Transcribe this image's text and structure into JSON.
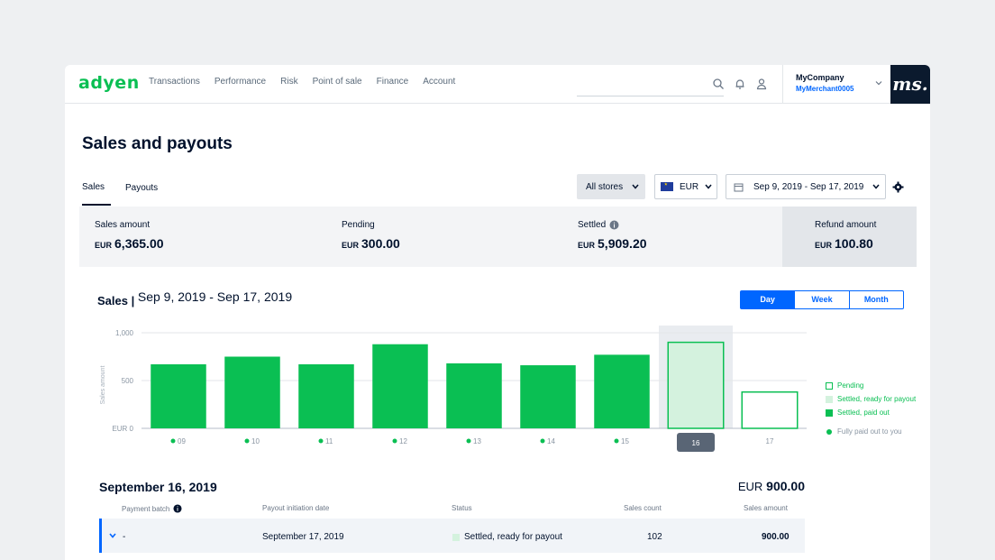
{
  "brand": {
    "logo_text": "adyen",
    "accent": "#0abf53",
    "link_blue": "#0066ff"
  },
  "nav": [
    "Transactions",
    "Performance",
    "Risk",
    "Point of sale",
    "Finance",
    "Account"
  ],
  "account": {
    "company": "MyCompany",
    "merchant": "MyMerchant0005",
    "avatar_text": "ms."
  },
  "page": {
    "title": "Sales and payouts"
  },
  "tabs": [
    "Sales",
    "Payouts"
  ],
  "filters": {
    "stores": "All stores",
    "currency": "EUR",
    "date_range": "Sep 9, 2019 - Sep 17, 2019"
  },
  "summary": [
    {
      "label": "Sales amount",
      "currency": "EUR",
      "value": "6,365.00"
    },
    {
      "label": "Pending",
      "currency": "EUR",
      "value": "300.00"
    },
    {
      "label": "Settled",
      "currency": "EUR",
      "value": "5,909.20"
    },
    {
      "label": "Refund amount",
      "currency": "EUR",
      "value": "100.80"
    }
  ],
  "chart": {
    "heading": "Sales |",
    "range": "Sep 9, 2019 - Sep 17, 2019",
    "periods": [
      "Day",
      "Week",
      "Month"
    ],
    "active_period": "Day",
    "legend": [
      "Pending",
      "Settled, ready for payout",
      "Settled, paid out",
      "Fully paid out to you"
    ]
  },
  "chart_data": {
    "type": "bar",
    "categories": [
      "09",
      "10",
      "11",
      "12",
      "13",
      "14",
      "15",
      "16",
      "17"
    ],
    "values": [
      670,
      750,
      670,
      880,
      680,
      660,
      770,
      900,
      380
    ],
    "status": [
      "paid",
      "paid",
      "paid",
      "paid",
      "paid",
      "paid",
      "paid",
      "ready",
      "pending"
    ],
    "selected": "16",
    "ylabel": "Sales amount",
    "yticks": [
      "EUR 0",
      "500",
      "1,000"
    ],
    "ylim": [
      0,
      1000
    ],
    "grid": true
  },
  "detail": {
    "date": "September 16, 2019",
    "total_currency": "EUR",
    "total_value": "900.00",
    "columns": [
      "Payment batch",
      "Payout initiation date",
      "Status",
      "Sales count",
      "Sales amount"
    ],
    "rows": [
      {
        "batch": "-",
        "date": "September 17, 2019",
        "status": "Settled, ready for payout",
        "count": "102",
        "amount": "900.00"
      }
    ]
  }
}
